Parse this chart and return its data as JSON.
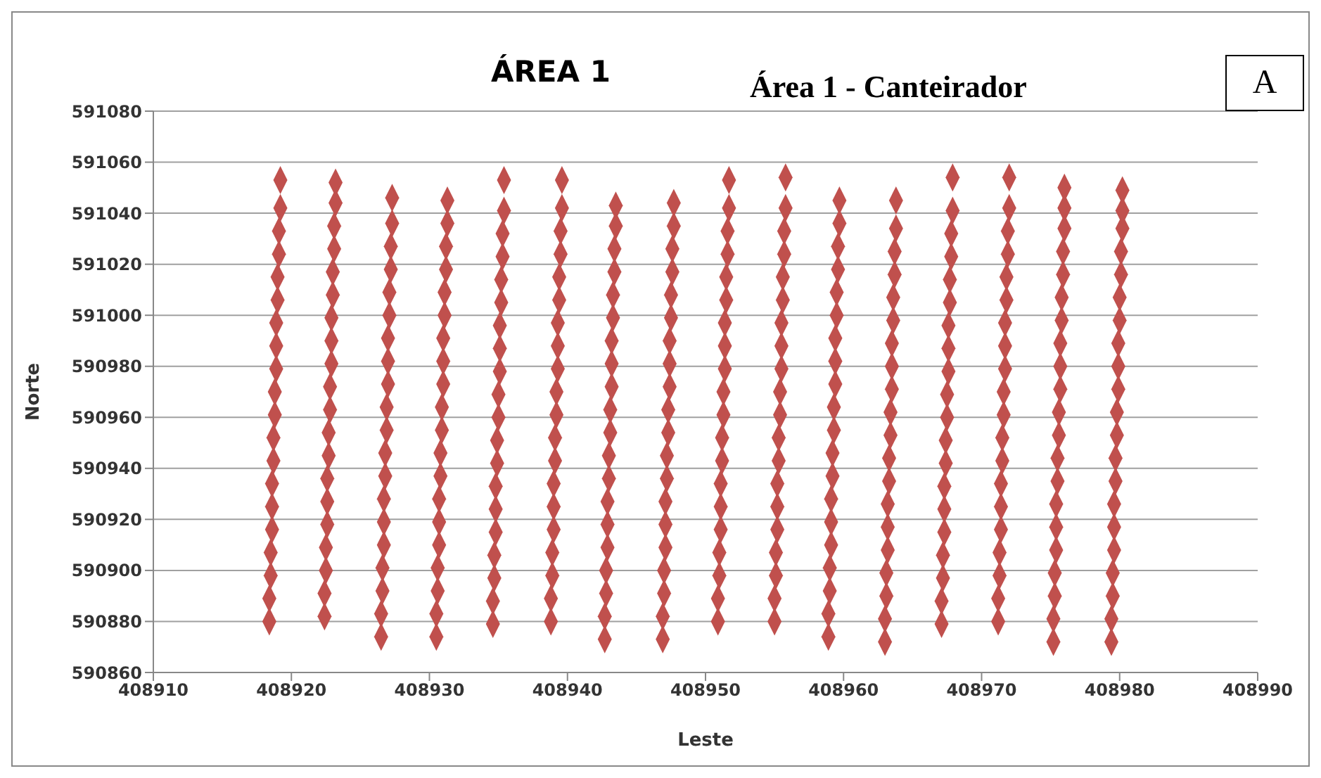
{
  "chart_data": {
    "type": "scatter",
    "title": "ÁREA 1",
    "annotations": [
      "Área 1 - Canteirador",
      "A"
    ],
    "xlabel": "Leste",
    "ylabel": "Norte",
    "xlim": [
      408910,
      408990
    ],
    "xticks": [
      408910,
      408920,
      408930,
      408940,
      408950,
      408960,
      408970,
      408980,
      408990
    ],
    "ylim": [
      590860,
      591080
    ],
    "yticks": [
      590860,
      590880,
      590900,
      590920,
      590940,
      590960,
      590980,
      591000,
      591020,
      591040,
      591060,
      591080
    ],
    "grid": "y",
    "marker": "diamond",
    "series": [
      {
        "color": "#c0504d",
        "x": [
          408918.4,
          408918.4,
          408918.5,
          408918.5,
          408918.6,
          408918.6,
          408918.6,
          408918.7,
          408918.7,
          408918.8,
          408918.8,
          408918.9,
          408918.9,
          408918.9,
          408919,
          408919,
          408919.1,
          408919.1,
          408919.2,
          408919.2
        ],
        "values": [
          590880,
          590889,
          590898,
          590907,
          590916,
          590925,
          590934,
          590943,
          590952,
          590961,
          590970,
          590979,
          590988,
          590997,
          591006,
          591015,
          591024,
          591033,
          591042,
          591053
        ]
      },
      {
        "color": "#c0504d",
        "x": [
          408922.4,
          408922.4,
          408922.5,
          408922.5,
          408922.6,
          408922.6,
          408922.6,
          408922.7,
          408922.7,
          408922.8,
          408922.8,
          408922.9,
          408922.9,
          408922.9,
          408923,
          408923,
          408923.1,
          408923.1,
          408923.2,
          408923.2
        ],
        "values": [
          590882,
          590891,
          590900,
          590909,
          590918,
          590927,
          590936,
          590945,
          590954,
          590963,
          590972,
          590981,
          590990,
          590999,
          591008,
          591017,
          591026,
          591035,
          591044,
          591052
        ]
      },
      {
        "color": "#c0504d",
        "x": [
          408926.5,
          408926.5,
          408926.6,
          408926.6,
          408926.7,
          408926.7,
          408926.7,
          408926.8,
          408926.8,
          408926.9,
          408926.9,
          408927,
          408927,
          408927,
          408927.1,
          408927.1,
          408927.2,
          408927.2,
          408927.3,
          408927.3
        ],
        "values": [
          590874,
          590883,
          590892,
          590901,
          590910,
          590919,
          590928,
          590937,
          590946,
          590955,
          590964,
          590973,
          590982,
          590991,
          591000,
          591009,
          591018,
          591027,
          591036,
          591046
        ]
      },
      {
        "color": "#c0504d",
        "x": [
          408930.5,
          408930.5,
          408930.6,
          408930.6,
          408930.7,
          408930.7,
          408930.7,
          408930.8,
          408930.8,
          408930.9,
          408930.9,
          408931,
          408931,
          408931,
          408931.1,
          408931.1,
          408931.2,
          408931.2,
          408931.3,
          408931.3
        ],
        "values": [
          590874,
          590883,
          590892,
          590901,
          590910,
          590919,
          590928,
          590937,
          590946,
          590955,
          590964,
          590973,
          590982,
          590991,
          591000,
          591009,
          591018,
          591027,
          591036,
          591045
        ]
      },
      {
        "color": "#c0504d",
        "x": [
          408934.6,
          408934.6,
          408934.7,
          408934.7,
          408934.8,
          408934.8,
          408934.8,
          408934.9,
          408934.9,
          408935,
          408935,
          408935.1,
          408935.1,
          408935.1,
          408935.2,
          408935.2,
          408935.3,
          408935.3,
          408935.4,
          408935.4
        ],
        "values": [
          590879,
          590888,
          590897,
          590906,
          590915,
          590924,
          590933,
          590942,
          590951,
          590960,
          590969,
          590978,
          590987,
          590996,
          591005,
          591014,
          591023,
          591032,
          591041,
          591053
        ]
      },
      {
        "color": "#c0504d",
        "x": [
          408938.8,
          408938.8,
          408938.9,
          408938.9,
          408939,
          408939,
          408939,
          408939.1,
          408939.1,
          408939.2,
          408939.2,
          408939.3,
          408939.3,
          408939.3,
          408939.4,
          408939.4,
          408939.5,
          408939.5,
          408939.6,
          408939.6
        ],
        "values": [
          590880,
          590889,
          590898,
          590907,
          590916,
          590925,
          590934,
          590943,
          590952,
          590961,
          590970,
          590979,
          590988,
          590997,
          591006,
          591015,
          591024,
          591033,
          591042,
          591053
        ]
      },
      {
        "color": "#c0504d",
        "x": [
          408942.7,
          408942.7,
          408942.8,
          408942.8,
          408942.9,
          408942.9,
          408942.9,
          408943,
          408943,
          408943.1,
          408943.1,
          408943.2,
          408943.2,
          408943.2,
          408943.3,
          408943.3,
          408943.4,
          408943.4,
          408943.5,
          408943.5
        ],
        "values": [
          590873,
          590882,
          590891,
          590900,
          590909,
          590918,
          590927,
          590936,
          590945,
          590954,
          590963,
          590972,
          590981,
          590990,
          590999,
          591008,
          591017,
          591026,
          591035,
          591043
        ]
      },
      {
        "color": "#c0504d",
        "x": [
          408946.9,
          408946.9,
          408947,
          408947,
          408947.1,
          408947.1,
          408947.1,
          408947.2,
          408947.2,
          408947.3,
          408947.3,
          408947.4,
          408947.4,
          408947.4,
          408947.5,
          408947.5,
          408947.6,
          408947.6,
          408947.7,
          408947.7
        ],
        "values": [
          590873,
          590882,
          590891,
          590900,
          590909,
          590918,
          590927,
          590936,
          590945,
          590954,
          590963,
          590972,
          590981,
          590990,
          590999,
          591008,
          591017,
          591026,
          591035,
          591044
        ]
      },
      {
        "color": "#c0504d",
        "x": [
          408950.9,
          408950.9,
          408951,
          408951,
          408951.1,
          408951.1,
          408951.1,
          408951.2,
          408951.2,
          408951.3,
          408951.3,
          408951.4,
          408951.4,
          408951.4,
          408951.5,
          408951.5,
          408951.6,
          408951.6,
          408951.7,
          408951.7
        ],
        "values": [
          590880,
          590889,
          590898,
          590907,
          590916,
          590925,
          590934,
          590943,
          590952,
          590961,
          590970,
          590979,
          590988,
          590997,
          591006,
          591015,
          591024,
          591033,
          591042,
          591053
        ]
      },
      {
        "color": "#c0504d",
        "x": [
          408955,
          408955,
          408955.1,
          408955.1,
          408955.2,
          408955.2,
          408955.2,
          408955.3,
          408955.3,
          408955.4,
          408955.4,
          408955.5,
          408955.5,
          408955.5,
          408955.6,
          408955.6,
          408955.7,
          408955.7,
          408955.8,
          408955.8
        ],
        "values": [
          590880,
          590889,
          590898,
          590907,
          590916,
          590925,
          590934,
          590943,
          590952,
          590961,
          590970,
          590979,
          590988,
          590997,
          591006,
          591015,
          591024,
          591033,
          591042,
          591054
        ]
      },
      {
        "color": "#c0504d",
        "x": [
          408958.9,
          408958.9,
          408959,
          408959,
          408959.1,
          408959.1,
          408959.1,
          408959.2,
          408959.2,
          408959.3,
          408959.3,
          408959.4,
          408959.4,
          408959.4,
          408959.5,
          408959.5,
          408959.6,
          408959.6,
          408959.7,
          408959.7
        ],
        "values": [
          590874,
          590883,
          590892,
          590901,
          590910,
          590919,
          590928,
          590937,
          590946,
          590955,
          590964,
          590973,
          590982,
          590991,
          591000,
          591009,
          591018,
          591027,
          591036,
          591045
        ]
      },
      {
        "color": "#c0504d",
        "x": [
          408963,
          408963,
          408963.1,
          408963.1,
          408963.2,
          408963.2,
          408963.2,
          408963.3,
          408963.3,
          408963.4,
          408963.4,
          408963.5,
          408963.5,
          408963.5,
          408963.6,
          408963.6,
          408963.7,
          408963.7,
          408963.8,
          408963.8
        ],
        "values": [
          590872,
          590881,
          590890,
          590899,
          590908,
          590917,
          590926,
          590935,
          590944,
          590953,
          590962,
          590971,
          590980,
          590989,
          590998,
          591007,
          591016,
          591025,
          591034,
          591045
        ]
      },
      {
        "color": "#c0504d",
        "x": [
          408967.1,
          408967.1,
          408967.2,
          408967.2,
          408967.3,
          408967.3,
          408967.3,
          408967.4,
          408967.4,
          408967.5,
          408967.5,
          408967.6,
          408967.6,
          408967.6,
          408967.7,
          408967.7,
          408967.8,
          408967.8,
          408967.9,
          408967.9
        ],
        "values": [
          590879,
          590888,
          590897,
          590906,
          590915,
          590924,
          590933,
          590942,
          590951,
          590960,
          590969,
          590978,
          590987,
          590996,
          591005,
          591014,
          591023,
          591032,
          591041,
          591054
        ]
      },
      {
        "color": "#c0504d",
        "x": [
          408971.2,
          408971.2,
          408971.3,
          408971.3,
          408971.4,
          408971.4,
          408971.4,
          408971.5,
          408971.5,
          408971.6,
          408971.6,
          408971.7,
          408971.7,
          408971.7,
          408971.8,
          408971.8,
          408971.9,
          408971.9,
          408972,
          408972
        ],
        "values": [
          590880,
          590889,
          590898,
          590907,
          590916,
          590925,
          590934,
          590943,
          590952,
          590961,
          590970,
          590979,
          590988,
          590997,
          591006,
          591015,
          591024,
          591033,
          591042,
          591054
        ]
      },
      {
        "color": "#c0504d",
        "x": [
          408975.2,
          408975.2,
          408975.3,
          408975.3,
          408975.4,
          408975.4,
          408975.4,
          408975.5,
          408975.5,
          408975.6,
          408975.6,
          408975.7,
          408975.7,
          408975.7,
          408975.8,
          408975.8,
          408975.9,
          408975.9,
          408976,
          408976,
          408976
        ],
        "values": [
          590872,
          590881,
          590890,
          590899,
          590908,
          590917,
          590926,
          590935,
          590944,
          590953,
          590962,
          590971,
          590980,
          590989,
          590998,
          591007,
          591016,
          591025,
          591034,
          591042,
          591050
        ]
      },
      {
        "color": "#c0504d",
        "x": [
          408979.4,
          408979.4,
          408979.5,
          408979.5,
          408979.6,
          408979.6,
          408979.6,
          408979.7,
          408979.7,
          408979.8,
          408979.8,
          408979.9,
          408979.9,
          408979.9,
          408980,
          408980,
          408980.1,
          408980.1,
          408980.2,
          408980.2,
          408980.2
        ],
        "values": [
          590872,
          590881,
          590890,
          590899,
          590908,
          590917,
          590926,
          590935,
          590944,
          590953,
          590962,
          590971,
          590980,
          590989,
          590998,
          591007,
          591016,
          591025,
          591034,
          591041,
          591049
        ]
      }
    ]
  }
}
